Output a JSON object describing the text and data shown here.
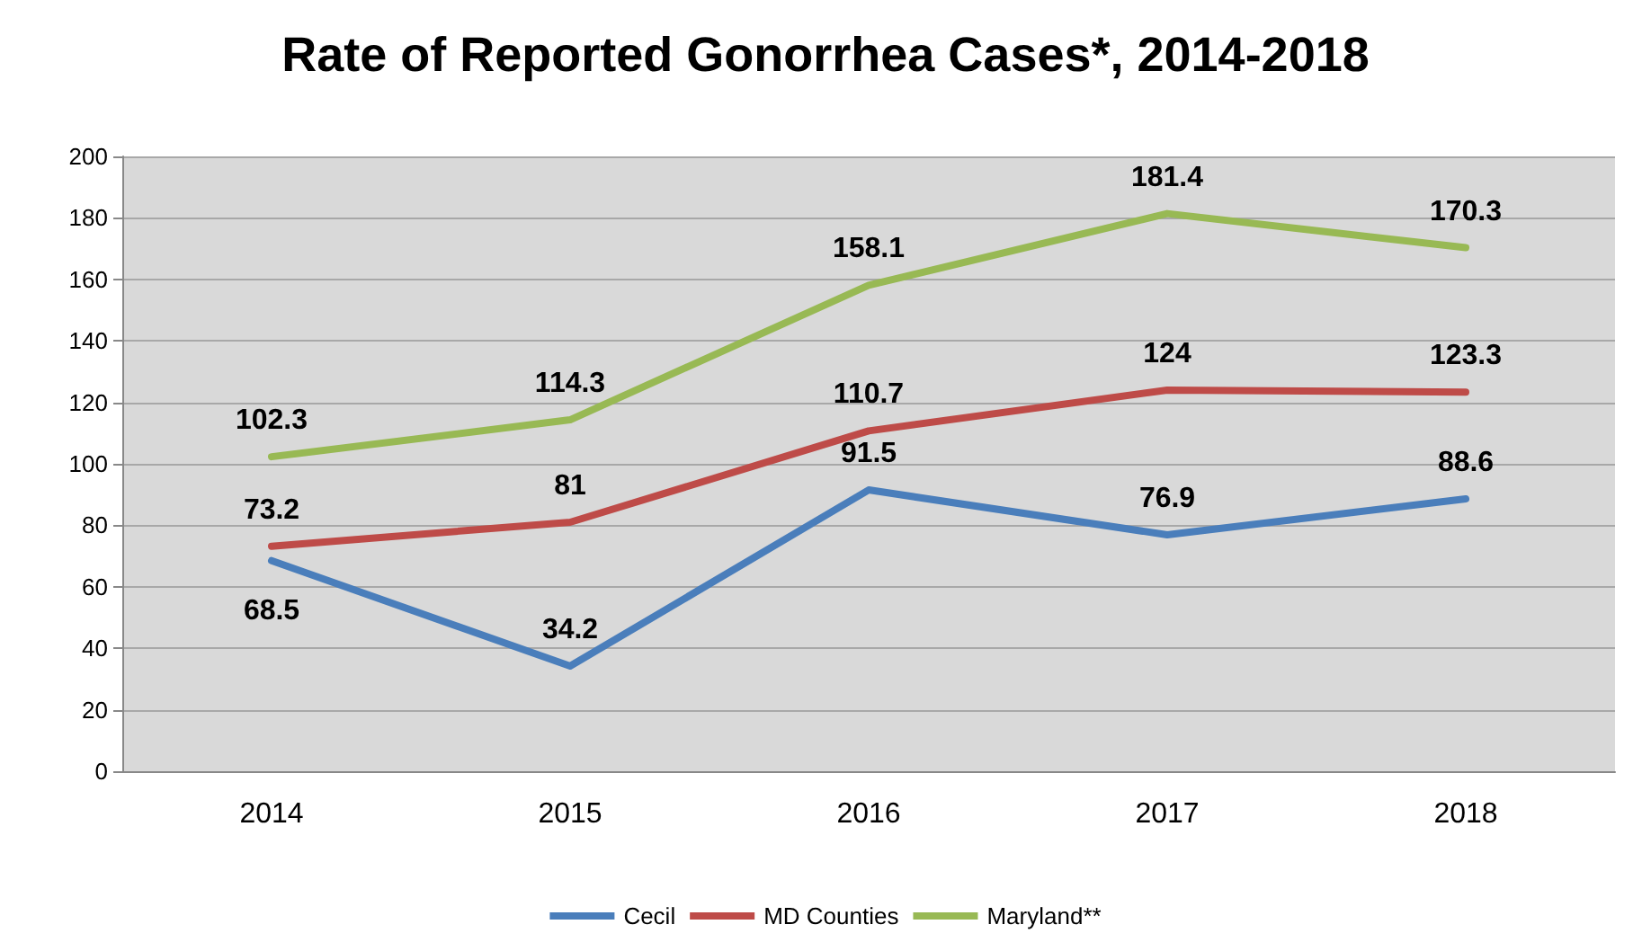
{
  "chart_data": {
    "type": "line",
    "title": "Rate of Reported Gonorrhea Cases*, 2014-2018",
    "categories": [
      "2014",
      "2015",
      "2016",
      "2017",
      "2018"
    ],
    "series": [
      {
        "name": "Cecil",
        "color": "#4a7ebb",
        "values": [
          68.5,
          34.2,
          91.5,
          76.9,
          88.6
        ]
      },
      {
        "name": "MD Counties",
        "color": "#be4b48",
        "values": [
          73.2,
          81,
          110.7,
          124,
          123.3
        ]
      },
      {
        "name": "Maryland**",
        "color": "#98b954",
        "values": [
          102.3,
          114.3,
          158.1,
          181.4,
          170.3
        ]
      }
    ],
    "ylim": [
      0,
      200
    ],
    "yticks": [
      0,
      20,
      40,
      60,
      80,
      100,
      120,
      140,
      160,
      180,
      200
    ],
    "grid": "y",
    "legend": "bottom",
    "marker": "none",
    "line_style": "solid",
    "data_labels": true
  }
}
